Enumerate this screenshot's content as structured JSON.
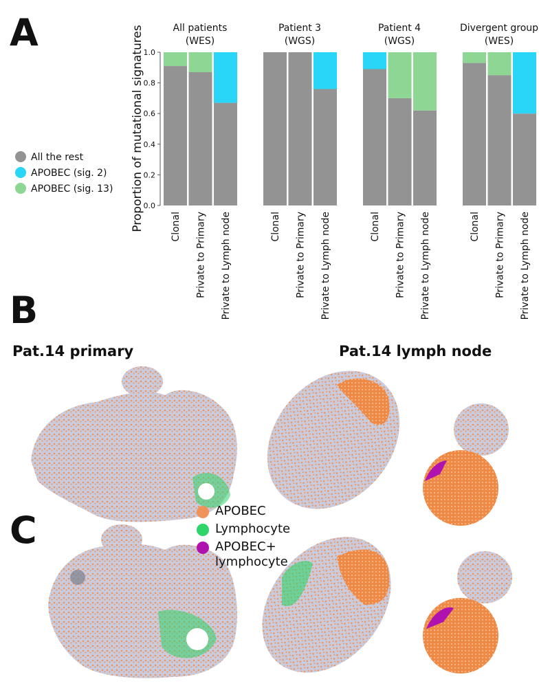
{
  "panels": {
    "a": "A",
    "b": "B",
    "c": "C"
  },
  "chart_data": {
    "type": "bar",
    "stacked": true,
    "ylabel": "Proportion of mutational signatures",
    "ylim": [
      0,
      1
    ],
    "yticks": [
      {
        "value": 0,
        "label": "0.0"
      },
      {
        "value": 0.2,
        "label": "0.2"
      },
      {
        "value": 0.4,
        "label": "0.4"
      },
      {
        "value": 0.6,
        "label": "0.6"
      },
      {
        "value": 0.8,
        "label": "0.8"
      },
      {
        "value": 1,
        "label": "1.0"
      }
    ],
    "series": [
      {
        "name": "All the rest",
        "color": "#939393"
      },
      {
        "name": "APOBEC (sig. 2)",
        "color": "#29d6f7"
      },
      {
        "name": "APOBEC (sig. 13)",
        "color": "#8dd694"
      }
    ],
    "groups": [
      {
        "title": "All patients",
        "subtitle": "(WES)",
        "categories": [
          "Clonal",
          "Private to Primary",
          "Private to Lymph node"
        ],
        "values": [
          [
            0.91,
            0.87,
            0.67
          ],
          [
            0,
            0,
            0.33
          ],
          [
            0.09,
            0.13,
            0
          ]
        ]
      },
      {
        "title": "Patient 3",
        "subtitle": "(WGS)",
        "categories": [
          "Clonal",
          "Private to Primary",
          "Private to Lymph node"
        ],
        "values": [
          [
            1,
            1,
            0.76
          ],
          [
            0,
            0,
            0.24
          ],
          [
            0,
            0,
            0
          ]
        ]
      },
      {
        "title": "Patient 4",
        "subtitle": "(WGS)",
        "categories": [
          "Clonal",
          "Private to Primary",
          "Private to Lymph node"
        ],
        "values": [
          [
            0.89,
            0.7,
            0.62
          ],
          [
            0.11,
            0,
            0
          ],
          [
            0,
            0.3,
            0.38
          ]
        ]
      },
      {
        "title": "Divergent group",
        "subtitle": "(WES)",
        "categories": [
          "Clonal",
          "Private to Primary",
          "Private to Lymph node"
        ],
        "values": [
          [
            0.93,
            0.85,
            0.6
          ],
          [
            0,
            0,
            0.4
          ],
          [
            0.07,
            0.15,
            0
          ]
        ]
      }
    ]
  },
  "images": {
    "primary_title": "Pat.14 primary",
    "lymph_title": "Pat.14 lymph node",
    "legend": [
      {
        "name": "APOBEC",
        "color": "#f0935a"
      },
      {
        "name": "Lymphocyte",
        "color": "#2fd46a"
      },
      {
        "name": "APOBEC+ lymphocyte",
        "color": "#b012b0"
      }
    ]
  }
}
